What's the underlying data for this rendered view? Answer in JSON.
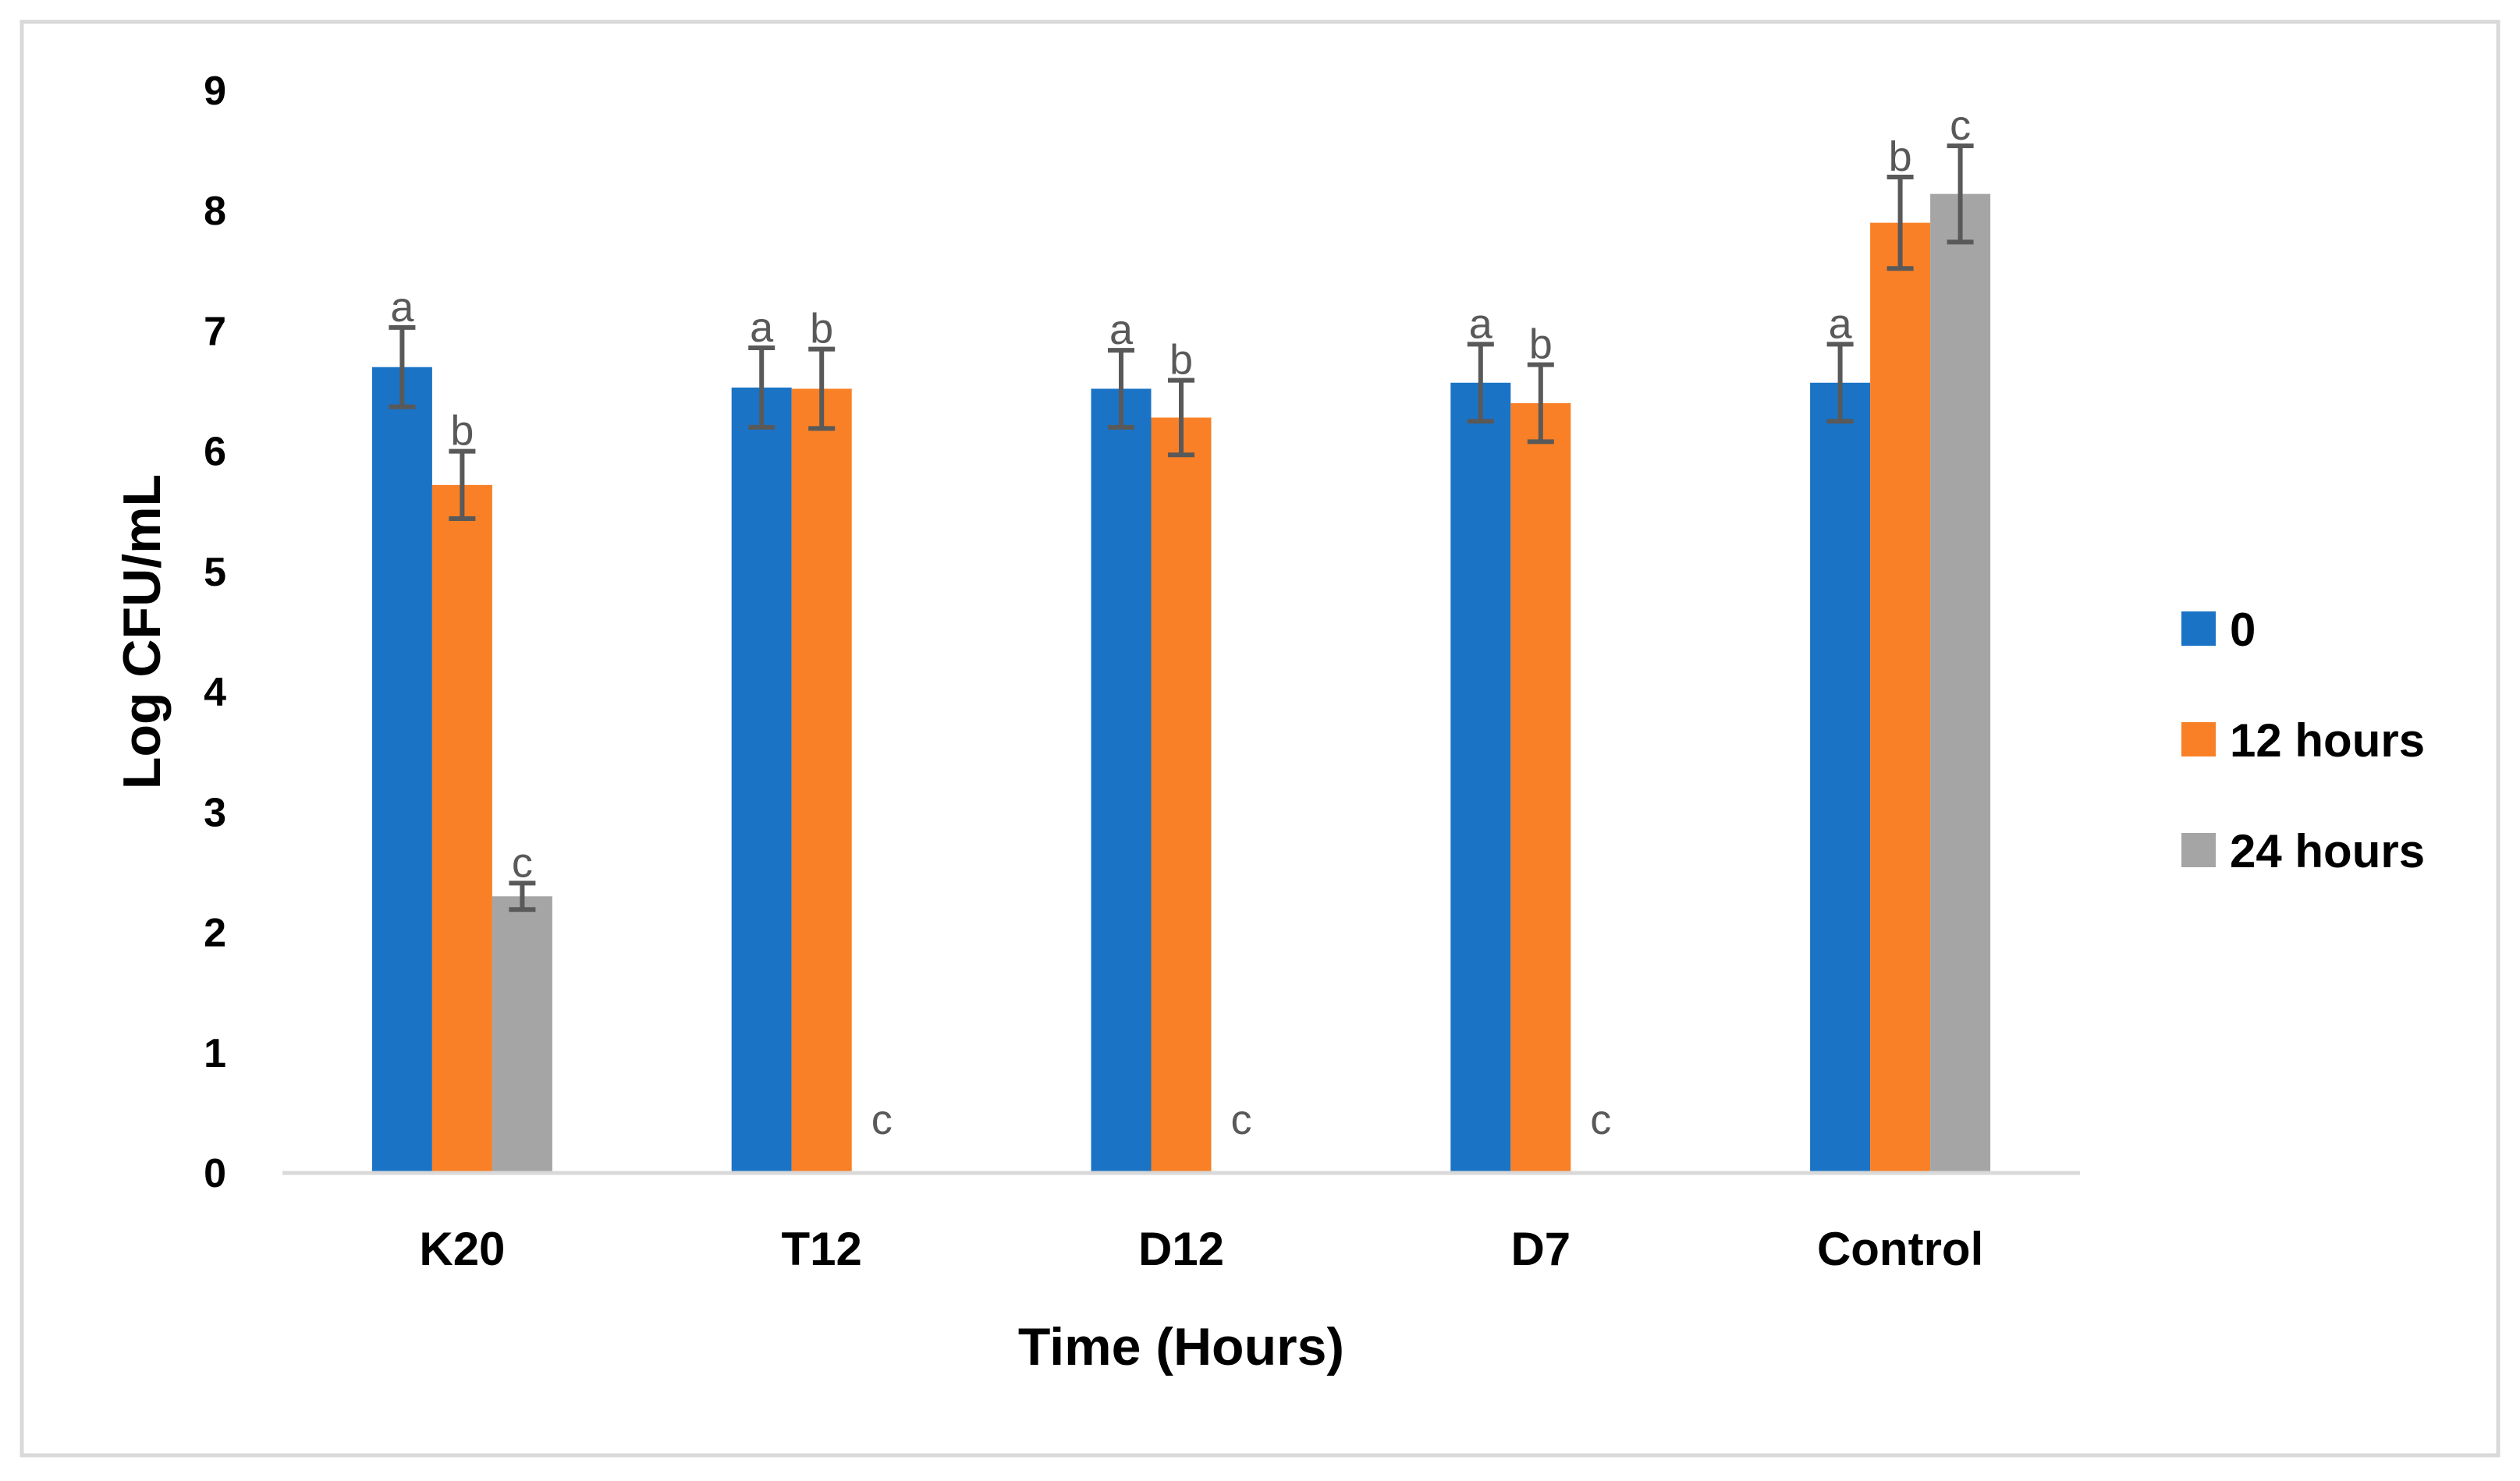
{
  "chart_data": {
    "type": "bar",
    "xlabel": "Time (Hours)",
    "ylabel": "Log CFU/mL",
    "ylim": [
      0,
      9
    ],
    "yticks": [
      "0",
      "1",
      "2",
      "3",
      "4",
      "5",
      "6",
      "7",
      "8",
      "9"
    ],
    "categories": [
      "K20",
      "T12",
      "D12",
      "D7",
      "Control"
    ],
    "grid": false,
    "legend_position": "right",
    "series": [
      {
        "name": "0",
        "color": "#1B73C6",
        "values": [
          6.7,
          6.53,
          6.52,
          6.57,
          6.57
        ],
        "errors": [
          0.33,
          0.33,
          0.32,
          0.32,
          0.32
        ],
        "sig": [
          "a",
          "a",
          "a",
          "a",
          "a"
        ]
      },
      {
        "name": "12 hours",
        "color": "#F98026",
        "values": [
          5.72,
          6.52,
          6.28,
          6.4,
          7.9
        ],
        "errors": [
          0.28,
          0.33,
          0.31,
          0.32,
          0.38
        ],
        "sig": [
          "b",
          "b",
          "b",
          "b",
          "b"
        ]
      },
      {
        "name": "24 hours",
        "color": "#A5A5A5",
        "values": [
          2.3,
          0,
          0,
          0,
          8.14
        ],
        "errors": [
          0.11,
          0,
          0,
          0,
          0.4
        ],
        "sig": [
          "c",
          "c",
          "c",
          "c",
          "c"
        ]
      }
    ]
  }
}
